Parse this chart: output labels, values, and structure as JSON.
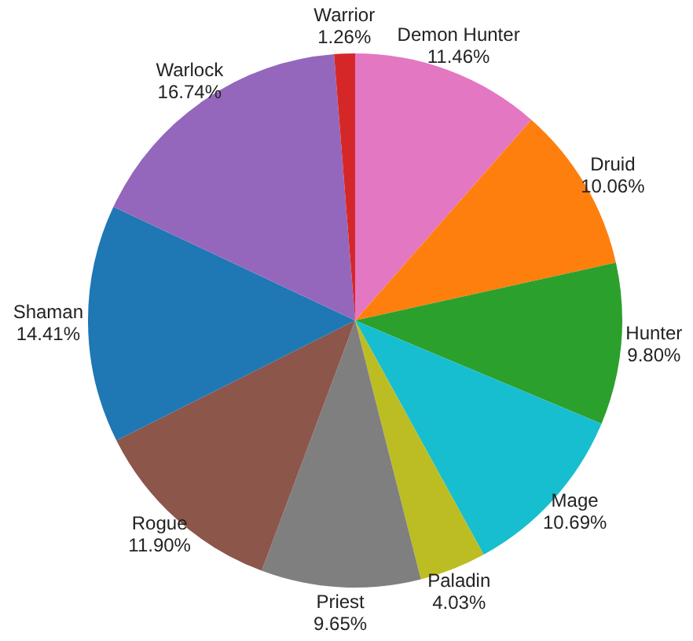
{
  "chart_data": {
    "type": "pie",
    "categories": [
      "Demon Hunter",
      "Druid",
      "Hunter",
      "Mage",
      "Paladin",
      "Priest",
      "Rogue",
      "Shaman",
      "Warlock",
      "Warrior"
    ],
    "values": [
      11.46,
      10.06,
      9.8,
      10.69,
      4.03,
      9.65,
      11.9,
      14.41,
      16.74,
      1.26
    ],
    "value_labels": [
      "11.46%",
      "10.06%",
      "9.80%",
      "10.69%",
      "4.03%",
      "9.65%",
      "11.90%",
      "14.41%",
      "16.74%",
      "1.26%"
    ],
    "colors": [
      "#e377c2",
      "#ff7f0e",
      "#2ca02c",
      "#17becf",
      "#bcbd22",
      "#7f7f7f",
      "#8c564b",
      "#1f77b4",
      "#9467bd",
      "#d62728"
    ],
    "legend": false
  }
}
